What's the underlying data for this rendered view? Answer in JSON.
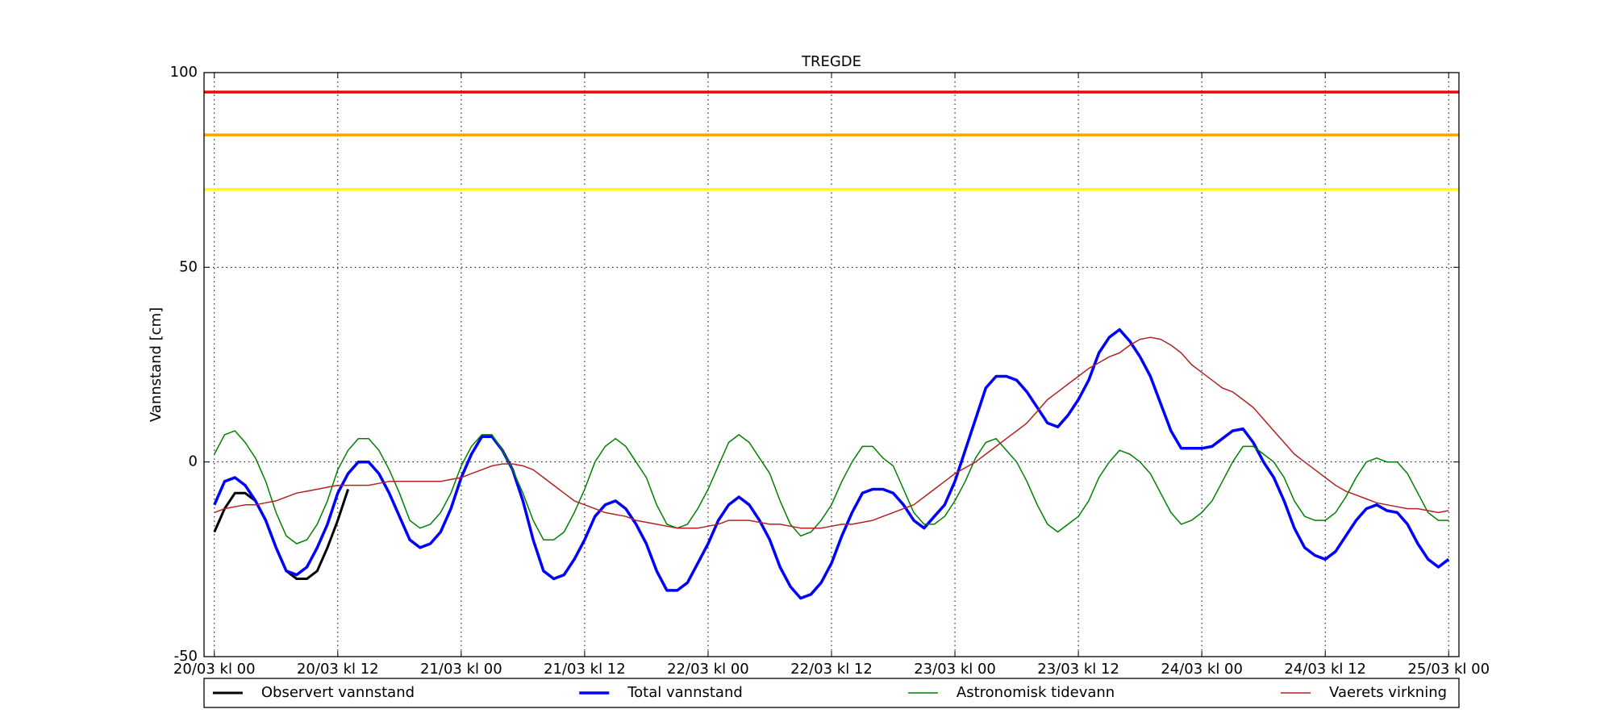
{
  "chart_data": {
    "type": "line",
    "title": "TREGDE",
    "y_label": "Vannstand [cm]",
    "x": [
      0,
      1,
      2,
      3,
      4,
      5,
      6,
      7,
      8,
      9,
      10,
      11,
      12,
      13,
      14,
      15,
      16,
      17,
      18,
      19,
      20,
      21,
      22,
      23,
      24,
      25,
      26,
      27,
      28,
      29,
      30,
      31,
      32,
      33,
      34,
      35,
      36,
      37,
      38,
      39,
      40,
      41,
      42,
      43,
      44,
      45,
      46,
      47,
      48,
      49,
      50,
      51,
      52,
      53,
      54,
      55,
      56,
      57,
      58,
      59,
      60,
      61,
      62,
      63,
      64,
      65,
      66,
      67,
      68,
      69,
      70,
      71,
      72,
      73,
      74,
      75,
      76,
      77,
      78,
      79,
      80,
      81,
      82,
      83,
      84,
      85,
      86,
      87,
      88,
      89,
      90,
      91,
      92,
      93,
      94,
      95,
      96,
      97,
      98,
      99,
      100,
      101,
      102,
      103,
      104,
      105,
      106,
      107,
      108,
      109,
      110,
      111,
      112,
      113,
      114,
      115,
      116,
      117,
      118,
      119,
      120
    ],
    "series": [
      {
        "name": "Observert vannstand",
        "color": "#000000",
        "linewidth": 3,
        "x": [
          0,
          1,
          2,
          3,
          4,
          5,
          6,
          7,
          8,
          9,
          10,
          11,
          12,
          13
        ],
        "values": [
          -18,
          -12,
          -8,
          -8,
          -10,
          -15,
          -22,
          -28,
          -30,
          -30,
          -28,
          -22,
          -15,
          -7
        ]
      },
      {
        "name": "Total vannstand",
        "color": "#0000ff",
        "linewidth": 3.5,
        "values": [
          -11,
          -5,
          -4,
          -6,
          -10,
          -15,
          -22,
          -28,
          -29,
          -27,
          -22,
          -16,
          -8,
          -3,
          0,
          0,
          -3,
          -8,
          -14,
          -20,
          -22,
          -21,
          -18,
          -12,
          -4,
          2,
          6.5,
          6.5,
          3,
          -2,
          -10,
          -20,
          -28,
          -30,
          -29,
          -25,
          -20,
          -14,
          -11,
          -10,
          -12,
          -16,
          -21,
          -28,
          -33,
          -33,
          -31,
          -26,
          -21,
          -15,
          -11,
          -9,
          -11,
          -15,
          -20,
          -27,
          -32,
          -35,
          -34,
          -31,
          -26,
          -19,
          -13,
          -8,
          -7,
          -7,
          -8,
          -11,
          -15,
          -17,
          -14,
          -11,
          -5,
          3,
          11,
          19,
          22,
          22,
          21,
          18,
          14,
          10,
          9,
          12,
          16,
          21,
          28,
          32,
          34,
          31,
          27,
          22,
          15,
          8,
          3.5,
          3.5,
          3.5,
          4,
          6,
          8,
          8.5,
          5,
          0,
          -4,
          -10,
          -17,
          -22,
          -24,
          -25,
          -23,
          -19,
          -15,
          -12,
          -11,
          -12.5,
          -13,
          -16,
          -21,
          -25,
          -27,
          -25
        ]
      },
      {
        "name": "Astronomisk tidevann",
        "color": "#008000",
        "linewidth": 1.5,
        "values": [
          2,
          7,
          8,
          5,
          1,
          -5,
          -13,
          -19,
          -21,
          -20,
          -16,
          -10,
          -2,
          3,
          6,
          6,
          3,
          -2,
          -8,
          -15,
          -17,
          -16,
          -13,
          -8,
          -1,
          4,
          7,
          7,
          3,
          -2,
          -8,
          -15,
          -20,
          -20,
          -18,
          -13,
          -7,
          0,
          4,
          6,
          4,
          0,
          -4,
          -11,
          -16,
          -17,
          -16,
          -12,
          -7,
          -1,
          5,
          7,
          5,
          1,
          -3,
          -10,
          -16,
          -19,
          -18,
          -15,
          -11,
          -5,
          0,
          4,
          4,
          1,
          -1,
          -7,
          -13,
          -16,
          -16,
          -14,
          -10,
          -5,
          1,
          5,
          6,
          3,
          0,
          -5,
          -11,
          -16,
          -18,
          -16,
          -14,
          -10,
          -4,
          0,
          3,
          2,
          0,
          -3,
          -8,
          -13,
          -16,
          -15,
          -13,
          -10,
          -5,
          0,
          4,
          4,
          2,
          0,
          -4,
          -10,
          -14,
          -15,
          -15,
          -13,
          -9,
          -4,
          0,
          1,
          0,
          0,
          -3,
          -8,
          -13,
          -15,
          -15
        ]
      },
      {
        "name": "Vaerets virkning",
        "color": "#b22222",
        "linewidth": 1.5,
        "values": [
          -13,
          -12,
          -11.5,
          -11,
          -11,
          -10.5,
          -10,
          -9,
          -8,
          -7.5,
          -7,
          -6.5,
          -6,
          -6,
          -6,
          -6,
          -5.5,
          -5,
          -5,
          -5,
          -5,
          -5,
          -5,
          -4.5,
          -4,
          -3,
          -2,
          -1,
          -0.5,
          -0.5,
          -1,
          -2,
          -4,
          -6,
          -8,
          -10,
          -11,
          -12,
          -13,
          -13.5,
          -14,
          -15,
          -15.5,
          -16,
          -16.5,
          -17,
          -17,
          -17,
          -16.5,
          -16,
          -15,
          -15,
          -15,
          -15.5,
          -16,
          -16,
          -16.5,
          -17,
          -17,
          -17,
          -16.5,
          -16,
          -16,
          -15.5,
          -15,
          -14,
          -13,
          -12,
          -11,
          -9,
          -7,
          -5,
          -3,
          -1.5,
          0,
          2,
          4,
          6,
          8,
          10,
          13,
          16,
          18,
          20,
          22,
          24,
          25.5,
          27,
          28,
          30,
          31.5,
          32,
          31.5,
          30,
          28,
          25,
          23,
          21,
          19,
          18,
          16,
          14,
          11,
          8,
          5,
          2,
          0,
          -2,
          -4,
          -6,
          -7.5,
          -8.5,
          -9.5,
          -10.5,
          -11,
          -11.5,
          -12,
          -12,
          -12.5,
          -13,
          -12.5
        ]
      }
    ],
    "threshold_lines": [
      {
        "value": 95,
        "color": "#ff0000"
      },
      {
        "value": 84,
        "color": "#ffa500"
      },
      {
        "value": 70,
        "color": "#ffff00"
      }
    ],
    "xlim": [
      -1,
      121
    ],
    "xticks": [
      {
        "value": 0,
        "label": "20/03 kl 00"
      },
      {
        "value": 12,
        "label": "20/03 kl 12"
      },
      {
        "value": 24,
        "label": "21/03 kl 00"
      },
      {
        "value": 36,
        "label": "21/03 kl 12"
      },
      {
        "value": 48,
        "label": "22/03 kl 00"
      },
      {
        "value": 60,
        "label": "22/03 kl 12"
      },
      {
        "value": 72,
        "label": "23/03 kl 00"
      },
      {
        "value": 84,
        "label": "23/03 kl 12"
      },
      {
        "value": 96,
        "label": "24/03 kl 00"
      },
      {
        "value": 108,
        "label": "24/03 kl 12"
      },
      {
        "value": 120,
        "label": "25/03 kl 00"
      }
    ],
    "ylim": [
      -50,
      100
    ],
    "yticks": [
      -50,
      0,
      50,
      100
    ],
    "grid": true,
    "legend": "bottom"
  }
}
